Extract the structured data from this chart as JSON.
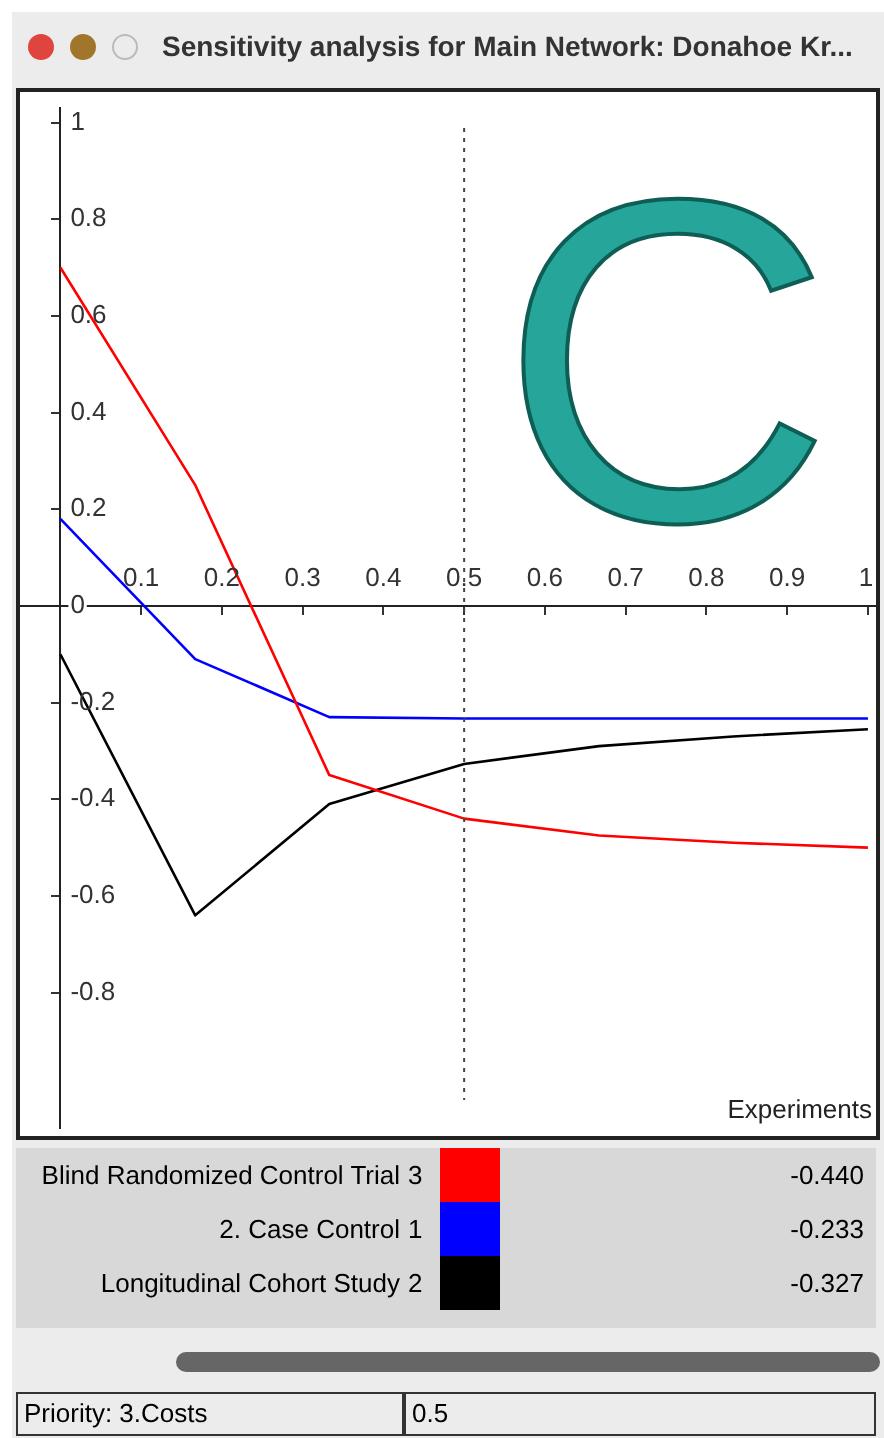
{
  "chart_data": {
    "type": "line",
    "title": "Sensitivity analysis for Main Network: Donahoe Kr...",
    "xlabel": "Experiments",
    "x": [
      0,
      0.167,
      0.333,
      0.5,
      0.667,
      0.833,
      1
    ],
    "series": [
      {
        "name": "Blind Randomized Control Trial",
        "color": "#ff0000",
        "values": [
          0.7,
          0.25,
          -0.35,
          -0.44,
          -0.475,
          -0.49,
          -0.5
        ]
      },
      {
        "name": "2. Case Control",
        "color": "#0000ff",
        "values": [
          0.18,
          -0.11,
          -0.23,
          -0.233,
          -0.233,
          -0.233,
          -0.233
        ]
      },
      {
        "name": "Longitudinal Cohort Study",
        "color": "#000000",
        "values": [
          -0.1,
          -0.64,
          -0.41,
          -0.327,
          -0.29,
          -0.27,
          -0.255
        ]
      }
    ],
    "xlim": [
      -0.05,
      1.01
    ],
    "xticks": [
      0.1,
      0.2,
      0.3,
      0.4,
      0.5,
      0.6,
      0.7,
      0.8,
      0.9,
      1
    ],
    "ylim": [
      -1.08,
      1.03
    ],
    "yticks": [
      -0.8,
      -0.6,
      -0.4,
      -0.2,
      0,
      0.2,
      0.4,
      0.6,
      0.8,
      1
    ],
    "ref_lines": [
      {
        "axis": "x",
        "value": 0.5,
        "color": "#444444",
        "line_style": "dotted"
      }
    ],
    "annotations": [
      "C",
      "3",
      "1",
      "2",
      "Priority: 3.Costs",
      "0.5",
      "-0.440",
      "-0.233",
      "-0.327"
    ],
    "grid": false,
    "legend": "bottom",
    "marker": "none",
    "line_style": "solid"
  }
}
